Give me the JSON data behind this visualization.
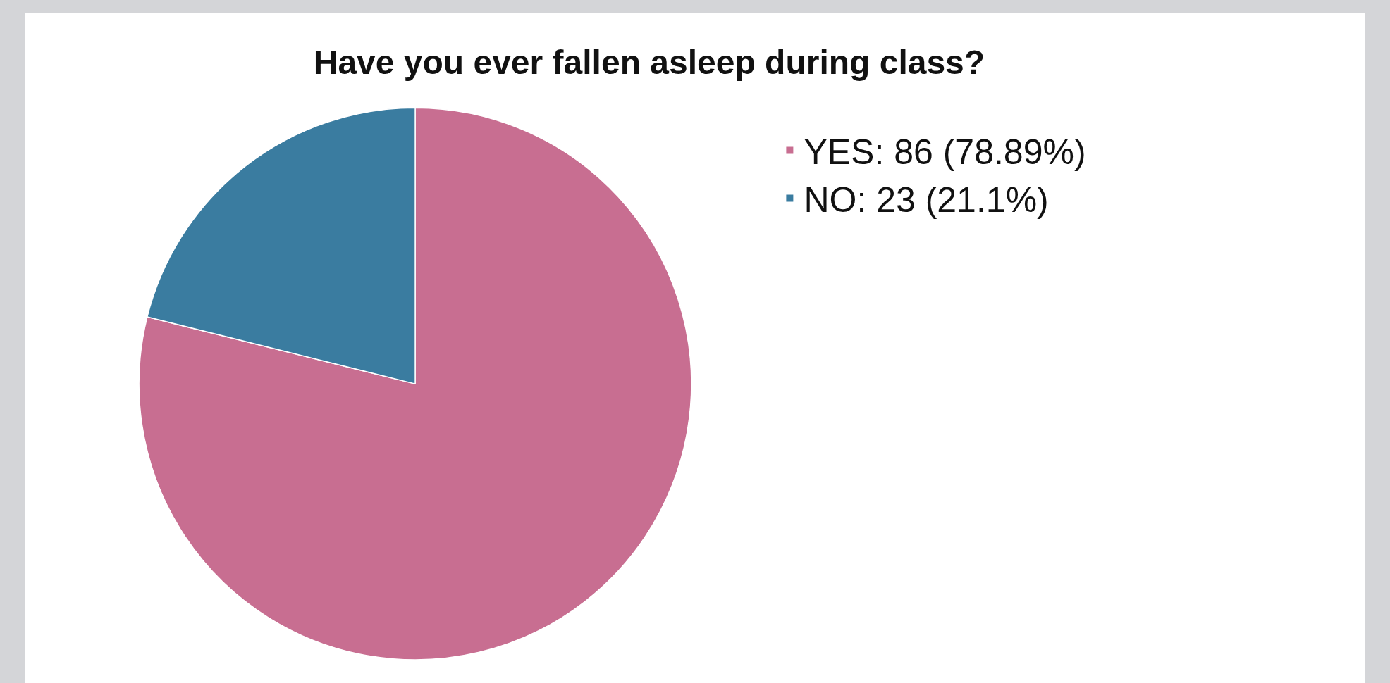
{
  "chart_data": {
    "type": "pie",
    "title": "Have you ever fallen asleep during class?",
    "categories": [
      "YES: 86 (78.89%)",
      "NO: 23 (21.1%)"
    ],
    "values": [
      86,
      23
    ],
    "colors": [
      "#c86e91",
      "#3a7ca0"
    ],
    "legend": "top right"
  }
}
